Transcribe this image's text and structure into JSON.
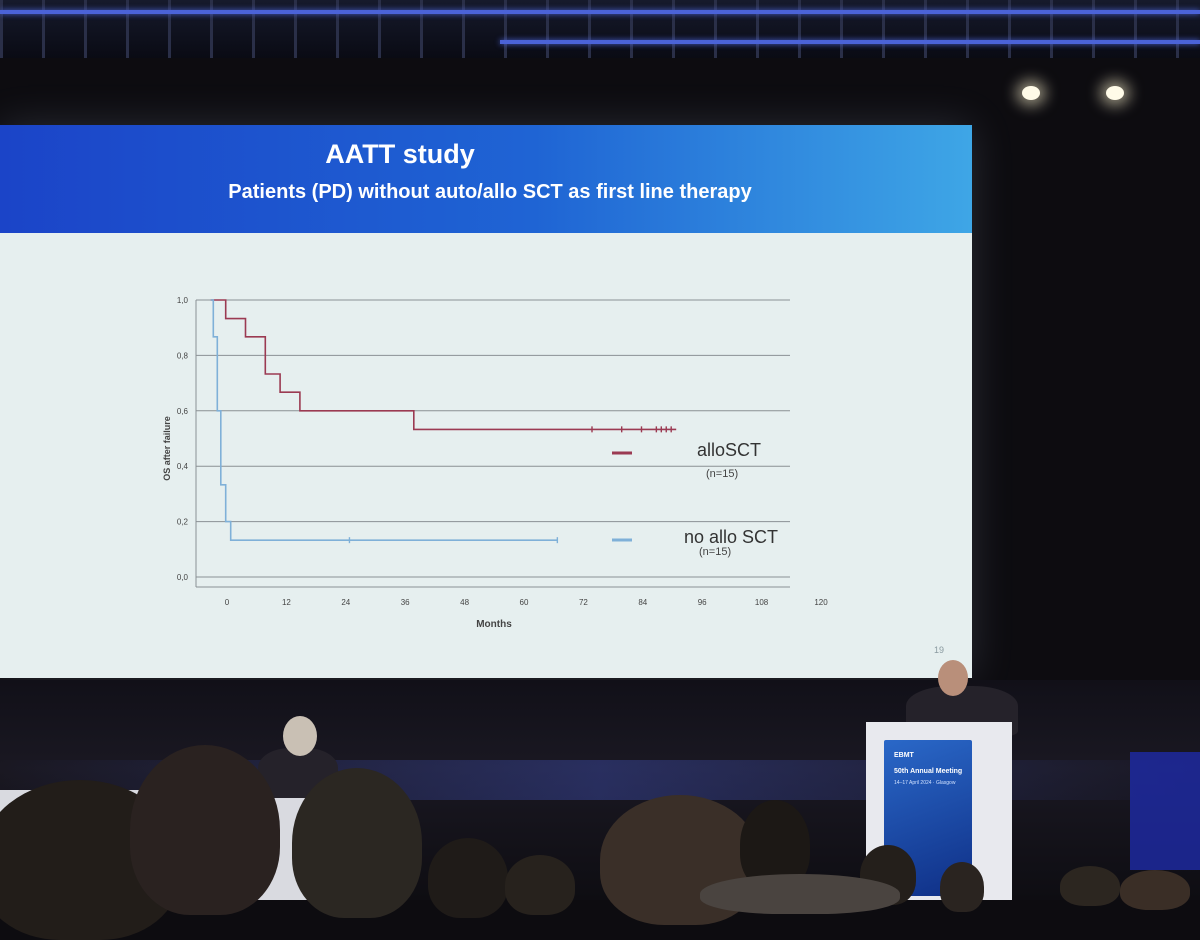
{
  "slide": {
    "title": "AATT study",
    "subtitle": "Patients (PD) without auto/allo SCT as first line therapy",
    "slide_number": "19"
  },
  "podium": {
    "logo": "EBMT",
    "event": "50th Annual Meeting",
    "dates": "14–17 April 2024 · Glasgow"
  },
  "colors": {
    "banner_left": "#1b44c8",
    "banner_right": "#3ea6e6",
    "allo_line": "#9b3a52",
    "noallo_line": "#7fb0d8",
    "grid": "#8a9094"
  },
  "chart_data": {
    "type": "line",
    "xlabel": "Months",
    "ylabel": "OS after failure",
    "xlim": [
      0,
      120
    ],
    "ylim": [
      0,
      1.0
    ],
    "x_ticks": [
      "0",
      "12",
      "24",
      "36",
      "48",
      "60",
      "72",
      "84",
      "96",
      "108",
      "120"
    ],
    "y_ticks": [
      "0,0",
      "0,2",
      "0,4",
      "0,6",
      "0,8",
      "1,0"
    ],
    "grid": true,
    "series": [
      {
        "name": "alloSCT",
        "n_label": "(n=15)",
        "points": [
          [
            3,
            1.0
          ],
          [
            6,
            1.0
          ],
          [
            6,
            0.933
          ],
          [
            10,
            0.933
          ],
          [
            10,
            0.867
          ],
          [
            14,
            0.867
          ],
          [
            14,
            0.733
          ],
          [
            17,
            0.733
          ],
          [
            17,
            0.667
          ],
          [
            21,
            0.667
          ],
          [
            21,
            0.6
          ],
          [
            44,
            0.6
          ],
          [
            44,
            0.533
          ],
          [
            97,
            0.533
          ]
        ],
        "censor_x": [
          80,
          86,
          90,
          93,
          94,
          95,
          96
        ]
      },
      {
        "name": "no allo SCT",
        "n_label": "(n=15)",
        "points": [
          [
            3,
            1.0
          ],
          [
            3.5,
            1.0
          ],
          [
            3.5,
            0.867
          ],
          [
            4.3,
            0.867
          ],
          [
            4.3,
            0.6
          ],
          [
            5,
            0.6
          ],
          [
            5,
            0.333
          ],
          [
            6,
            0.333
          ],
          [
            6,
            0.2
          ],
          [
            7,
            0.2
          ],
          [
            7,
            0.133
          ],
          [
            73,
            0.133
          ]
        ],
        "censor_x": [
          31,
          73
        ]
      }
    ]
  }
}
